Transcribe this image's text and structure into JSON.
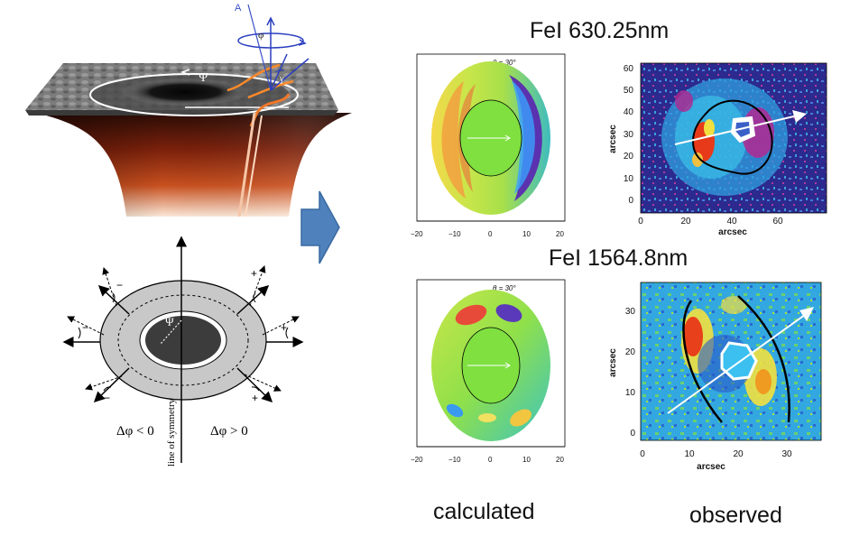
{
  "headings": {
    "fe_630": "FeI 630.25nm",
    "fe_1564": "FeI 1564.8nm"
  },
  "captions": {
    "calculated": "calculated",
    "observed": "observed"
  },
  "model_3d": {
    "letters": {
      "a": "A",
      "phi": "φ",
      "psi": "Ψ",
      "gamma": "γ"
    }
  },
  "schematic": {
    "psi": "Ψ",
    "line_of_symmetry": "line of symmetry",
    "delta_left": "Δφ < 0",
    "delta_right": "Δφ > 0",
    "signs": [
      "−",
      "+",
      "−",
      "+",
      "−",
      "+"
    ]
  },
  "calc_top": {
    "theta_label": "θ = 30°",
    "x_ticks": [
      "−20",
      "−10",
      "0",
      "10",
      "20"
    ]
  },
  "calc_bottom": {
    "theta_label": "θ = 30°",
    "x_ticks": [
      "−20",
      "−10",
      "0",
      "10",
      "20"
    ]
  },
  "obs_top": {
    "y_ticks": [
      "60",
      "50",
      "40",
      "30",
      "20",
      "10",
      "0"
    ],
    "x_ticks": [
      "0",
      "20",
      "40",
      "60"
    ],
    "xlabel": "arcsec",
    "ylabel": "arcsec"
  },
  "obs_bottom": {
    "y_ticks": [
      "30",
      "20",
      "10",
      "0"
    ],
    "x_ticks": [
      "0",
      "10",
      "20",
      "30"
    ],
    "xlabel": "arcsec",
    "ylabel": "arcsec"
  },
  "colors": {
    "arrow_blue": "#4f81bd",
    "spot_red": "#c84a1a"
  }
}
